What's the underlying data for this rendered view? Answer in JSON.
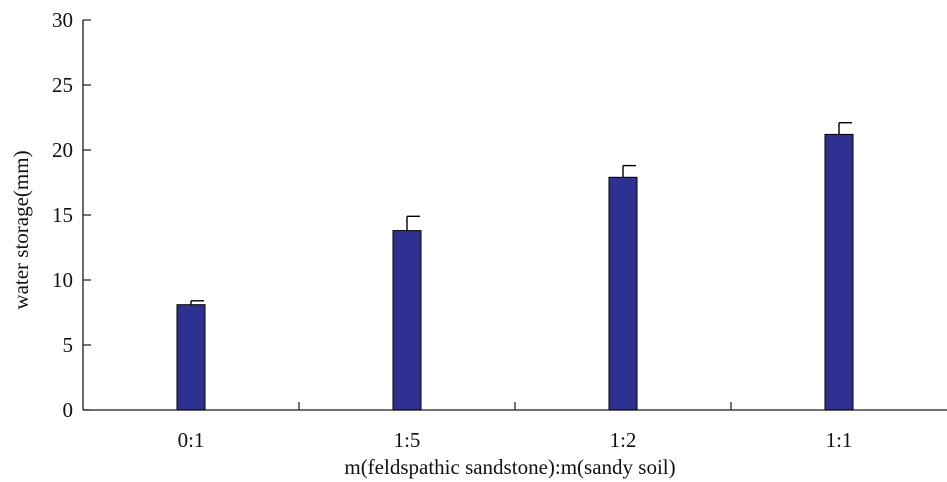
{
  "chart_data": {
    "type": "bar",
    "title": "",
    "xlabel": "m(feldspathic sandstone):m(sandy soil)",
    "ylabel": "water storage(mm)",
    "categories": [
      "0:1",
      "1:5",
      "1:2",
      "1:1"
    ],
    "values": [
      8.1,
      13.8,
      17.9,
      21.2
    ],
    "errors": [
      0.3,
      1.1,
      0.9,
      0.9
    ],
    "ylim": [
      0,
      30
    ],
    "yticks": [
      "0",
      "5",
      "10",
      "15",
      "20",
      "25",
      "30"
    ],
    "grid": false,
    "bar_color": "#2e3192"
  }
}
